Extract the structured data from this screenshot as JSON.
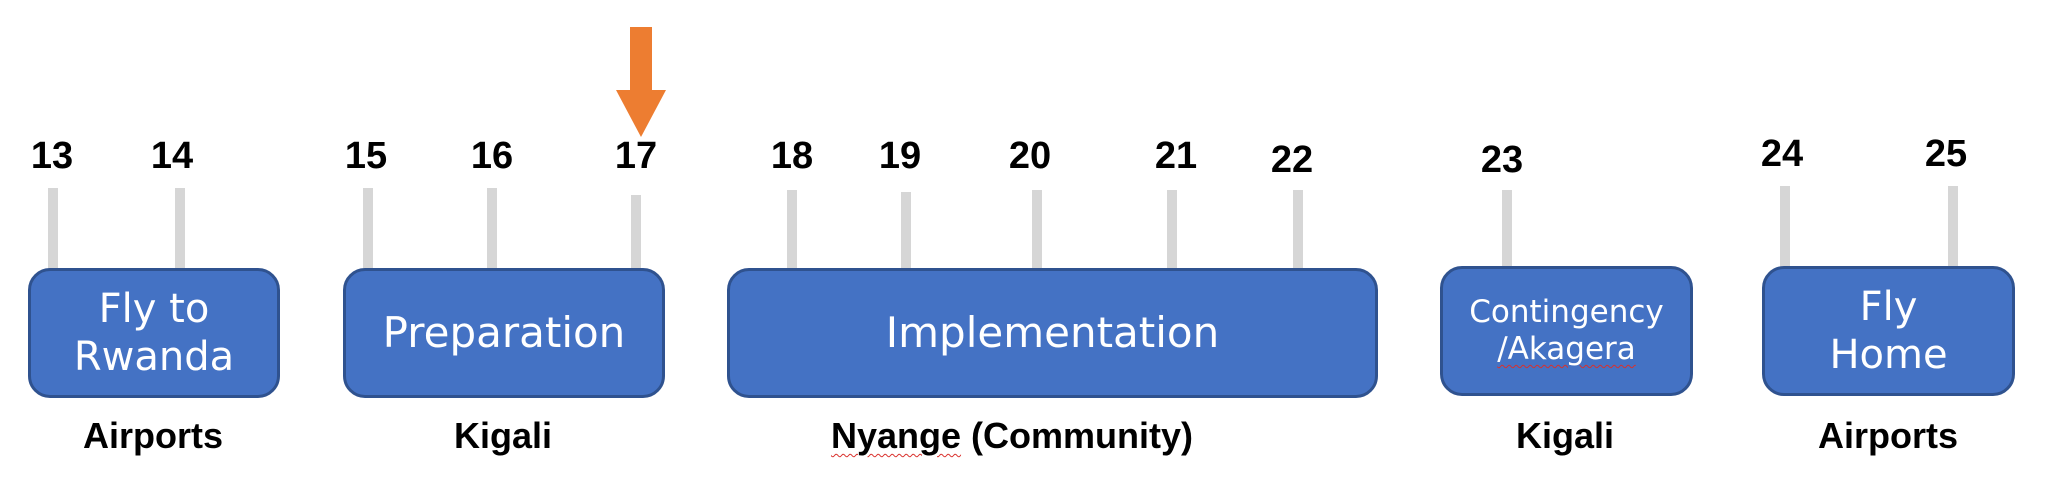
{
  "timeline": {
    "days": [
      "13",
      "14",
      "15",
      "16",
      "17",
      "18",
      "19",
      "20",
      "21",
      "22",
      "23",
      "24",
      "25"
    ],
    "current_day": "17",
    "arrow_color": "#ed7d31"
  },
  "phases": [
    {
      "lines": [
        "Fly to",
        "Rwanda"
      ],
      "location": "Airports"
    },
    {
      "lines": [
        "Preparation"
      ],
      "location": "Kigali"
    },
    {
      "lines": [
        "Implementation"
      ],
      "location": "Nyange (Community)"
    },
    {
      "lines": [
        "Contingency",
        "/Akagera"
      ],
      "location": "Kigali"
    },
    {
      "lines": [
        "Fly",
        "Home"
      ],
      "location": "Airports"
    }
  ],
  "colors": {
    "box_fill": "#4472c4",
    "box_border": "#2f528f",
    "tick": "#d6d6d6",
    "spellcheck_underline": "#d9302c"
  }
}
